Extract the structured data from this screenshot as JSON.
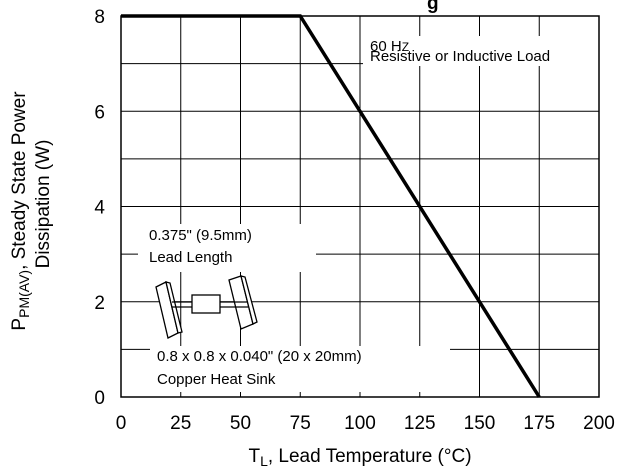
{
  "chart_data": {
    "type": "line",
    "title_fragment": "g",
    "xlabel": {
      "main": "T",
      "sub": "L",
      "rest": ", Lead Temperature (°C)"
    },
    "ylabel": {
      "main": "P",
      "sub": "PM(AV)",
      "rest": ", Steady State Power",
      "line2": "Dissipation (W)"
    },
    "x_ticks": [
      0,
      25,
      50,
      75,
      100,
      125,
      150,
      175,
      200
    ],
    "y_ticks": [
      0,
      2,
      4,
      6,
      8
    ],
    "xlim": [
      0,
      200
    ],
    "ylim": [
      0,
      8
    ],
    "grid": true,
    "series": [
      {
        "x": [
          0,
          75,
          175
        ],
        "y": [
          8,
          8,
          0
        ]
      }
    ],
    "annotations": {
      "frequency": "60 H",
      "frequency_unit_small": "Z",
      "load": "Resistive or Inductive Load",
      "lead_size": "0.375\" (9.5mm)",
      "lead_length": "Lead Length",
      "heatsink_size": "0.8 x 0.8 x 0.040\" (20 x 20mm)",
      "heatsink_label": "Copper Heat Sink"
    }
  }
}
